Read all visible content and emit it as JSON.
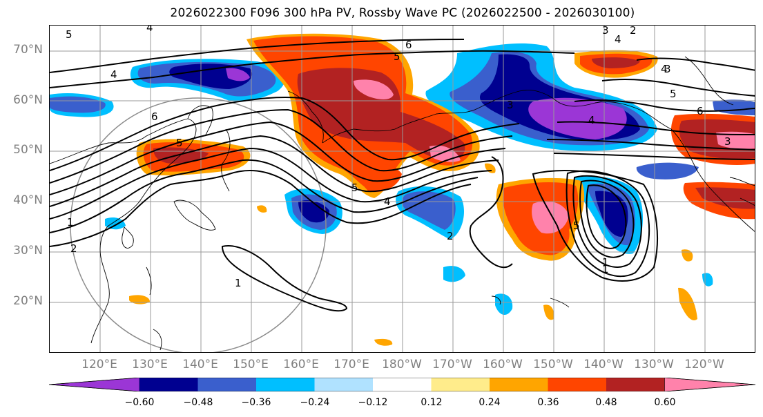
{
  "title": "2026022300 F096 300 hPa PV, Rossby Wave PC (2026022500 - 2026030100)",
  "lat_labels": [
    "70°N",
    "60°N",
    "50°N",
    "40°N",
    "30°N",
    "20°N"
  ],
  "lon_labels": [
    "120°E",
    "130°E",
    "140°E",
    "150°E",
    "160°E",
    "170°E",
    "180°W",
    "170°W",
    "160°W",
    "150°W",
    "140°W",
    "130°W",
    "120°W"
  ],
  "contour_labels": [
    "5",
    "4",
    "3",
    "2",
    "1",
    "6",
    "5",
    "4",
    "5",
    "6",
    "4",
    "3",
    "2",
    "1",
    "5",
    "4",
    "2",
    "1",
    "1",
    "5",
    "4",
    "3",
    "4",
    "5",
    "6",
    "3"
  ],
  "colorbar": {
    "ticks": [
      "−0.60",
      "−0.48",
      "−0.36",
      "−0.24",
      "−0.12",
      "0.12",
      "0.24",
      "0.36",
      "0.48",
      "0.60"
    ],
    "colors": [
      "#9b36d6",
      "#000090",
      "#3a5fcd",
      "#00bfff",
      "#b0e2ff",
      "#ffffff",
      "#ffec8b",
      "#ffa500",
      "#ff4500",
      "#b22222",
      "#ff82ab"
    ],
    "extend": "both"
  }
}
